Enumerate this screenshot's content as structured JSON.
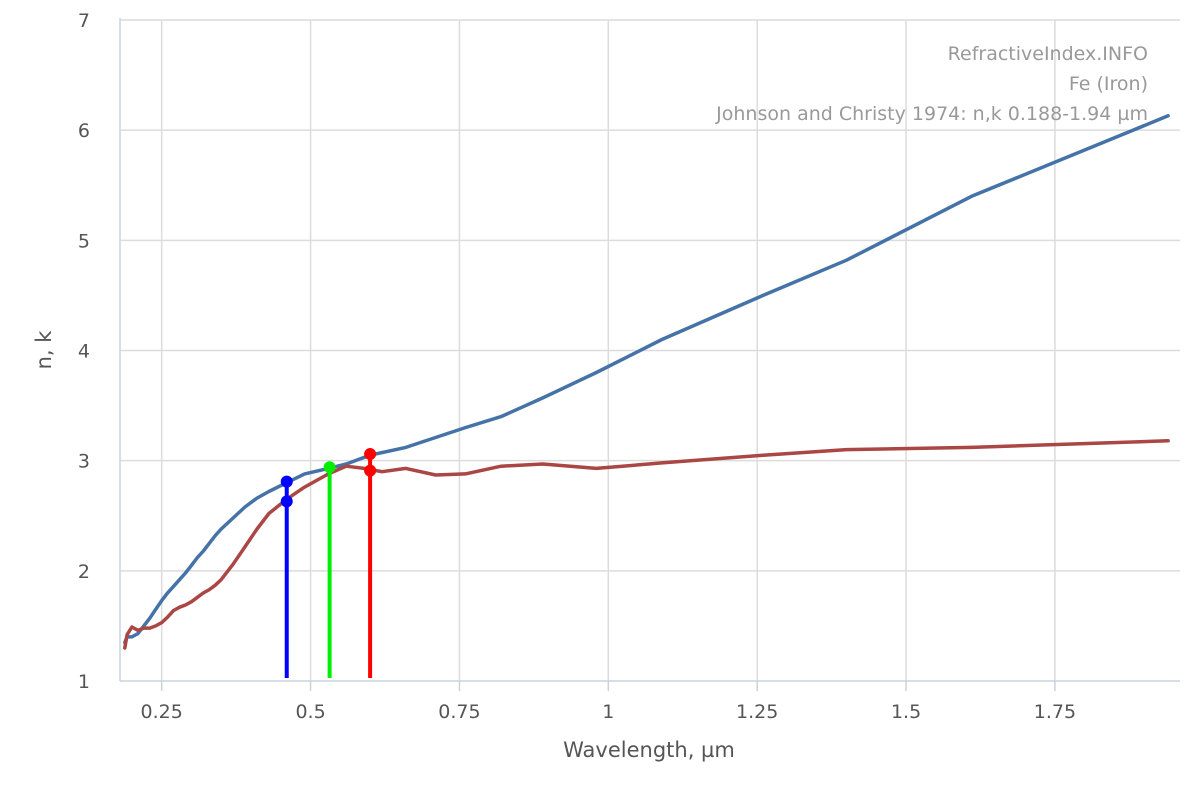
{
  "chart_data": {
    "type": "line",
    "title": "",
    "xlabel": "Wavelength, µm",
    "ylabel": "n, k",
    "xlim": [
      0.18,
      1.96
    ],
    "ylim": [
      1,
      7
    ],
    "x_ticks": [
      0.25,
      0.5,
      0.75,
      1,
      1.25,
      1.5,
      1.75
    ],
    "x_tick_labels": [
      "0.25",
      "0.5",
      "0.75",
      "1",
      "1.25",
      "1.5",
      "1.75"
    ],
    "y_ticks": [
      1,
      2,
      3,
      4,
      5,
      6,
      7
    ],
    "y_tick_labels": [
      "1",
      "2",
      "3",
      "4",
      "5",
      "6",
      "7"
    ],
    "grid": true,
    "annotations": [
      "RefractiveIndex.INFO",
      "Fe (Iron)",
      "Johnson and Christy 1974: n,k 0.188-1.94 µm"
    ],
    "colors": {
      "n_series": "#4572a7",
      "k_series": "#aa4643",
      "marker_blue": "#0000ff",
      "marker_green": "#00ee00",
      "marker_red": "#ff0000"
    },
    "series": [
      {
        "id": "n",
        "x": [
          0.188,
          0.192,
          0.2,
          0.21,
          0.22,
          0.23,
          0.24,
          0.25,
          0.26,
          0.27,
          0.28,
          0.29,
          0.3,
          0.31,
          0.32,
          0.33,
          0.34,
          0.35,
          0.37,
          0.39,
          0.41,
          0.43,
          0.46,
          0.49,
          0.53,
          0.56,
          0.6,
          0.66,
          0.71,
          0.76,
          0.82,
          0.89,
          0.98,
          1.09,
          1.26,
          1.4,
          1.61,
          1.94
        ],
        "y": [
          1.35,
          1.4,
          1.4,
          1.43,
          1.5,
          1.57,
          1.65,
          1.73,
          1.8,
          1.86,
          1.92,
          1.98,
          2.05,
          2.12,
          2.18,
          2.25,
          2.32,
          2.38,
          2.48,
          2.58,
          2.66,
          2.72,
          2.8,
          2.88,
          2.93,
          2.97,
          3.05,
          3.12,
          3.21,
          3.3,
          3.4,
          3.57,
          3.8,
          4.1,
          4.5,
          4.82,
          5.4,
          6.13
        ]
      },
      {
        "id": "k",
        "x": [
          0.188,
          0.192,
          0.2,
          0.21,
          0.22,
          0.23,
          0.24,
          0.25,
          0.26,
          0.27,
          0.28,
          0.29,
          0.3,
          0.31,
          0.32,
          0.33,
          0.34,
          0.35,
          0.37,
          0.39,
          0.41,
          0.43,
          0.46,
          0.49,
          0.53,
          0.56,
          0.59,
          0.6,
          0.62,
          0.66,
          0.71,
          0.76,
          0.82,
          0.89,
          0.98,
          1.09,
          1.26,
          1.4,
          1.61,
          1.94
        ],
        "y": [
          1.3,
          1.42,
          1.49,
          1.46,
          1.48,
          1.48,
          1.5,
          1.53,
          1.58,
          1.64,
          1.67,
          1.69,
          1.72,
          1.76,
          1.8,
          1.83,
          1.87,
          1.92,
          2.06,
          2.22,
          2.38,
          2.52,
          2.65,
          2.76,
          2.88,
          2.95,
          2.93,
          2.92,
          2.9,
          2.93,
          2.87,
          2.88,
          2.95,
          2.97,
          2.93,
          2.98,
          3.05,
          3.1,
          3.12,
          3.18
        ]
      }
    ],
    "markers": [
      {
        "id": "blue",
        "x": 0.46,
        "n": 2.81,
        "k": 2.63
      },
      {
        "id": "green",
        "x": 0.532,
        "n": 2.94,
        "k": 2.94
      },
      {
        "id": "red",
        "x": 0.6,
        "n": 3.06,
        "k": 2.91
      }
    ]
  }
}
